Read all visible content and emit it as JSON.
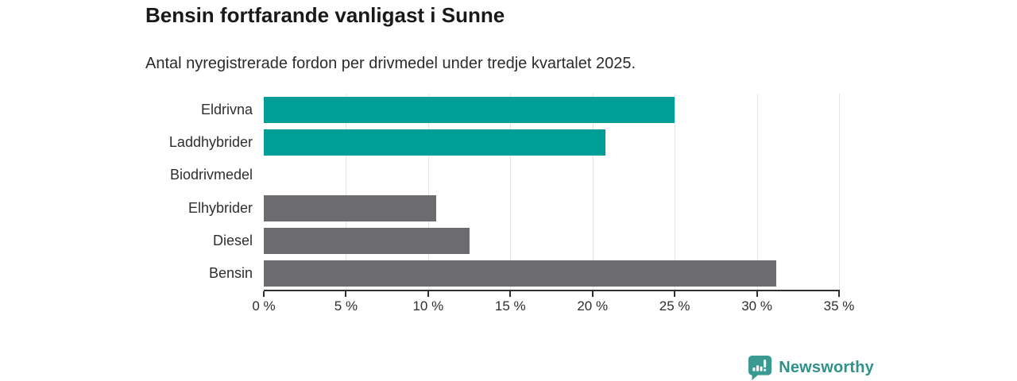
{
  "header": {
    "title": "Bensin fortfarande vanligast i Sunne",
    "subtitle": "Antal nyregistrerade fordon per drivmedel under tredje kvartalet 2025."
  },
  "chart_data": {
    "type": "bar",
    "orientation": "horizontal",
    "title": "Bensin fortfarande vanligast i Sunne",
    "subtitle": "Antal nyregistrerade fordon per drivmedel under tredje kvartalet 2025.",
    "categories": [
      "Eldrivna",
      "Laddhybrider",
      "Biodrivmedel",
      "Elhybrider",
      "Diesel",
      "Bensin"
    ],
    "values": [
      25.0,
      20.8,
      0,
      10.5,
      12.5,
      31.2
    ],
    "unit": "%",
    "bar_colors": [
      "#009e97",
      "#009e97",
      "#009e97",
      "#6c6c70",
      "#6c6c70",
      "#6c6c70"
    ],
    "xlim": [
      0,
      35
    ],
    "xticks": [
      0,
      5,
      10,
      15,
      20,
      25,
      30,
      35
    ],
    "xtick_labels": [
      "0 %",
      "5 %",
      "10 %",
      "15 %",
      "20 %",
      "25 %",
      "30 %",
      "35 %"
    ],
    "xlabel": "",
    "ylabel": "",
    "grid": "vertical-only",
    "gridline_color": "#e4e4e4",
    "axis_color": "#2f2f2f",
    "legend": "none"
  },
  "footer": {
    "brand": "Newsworthy",
    "brand_color": "#2f9189",
    "logo_icon": "bar-chart-speech-bubble-icon"
  }
}
